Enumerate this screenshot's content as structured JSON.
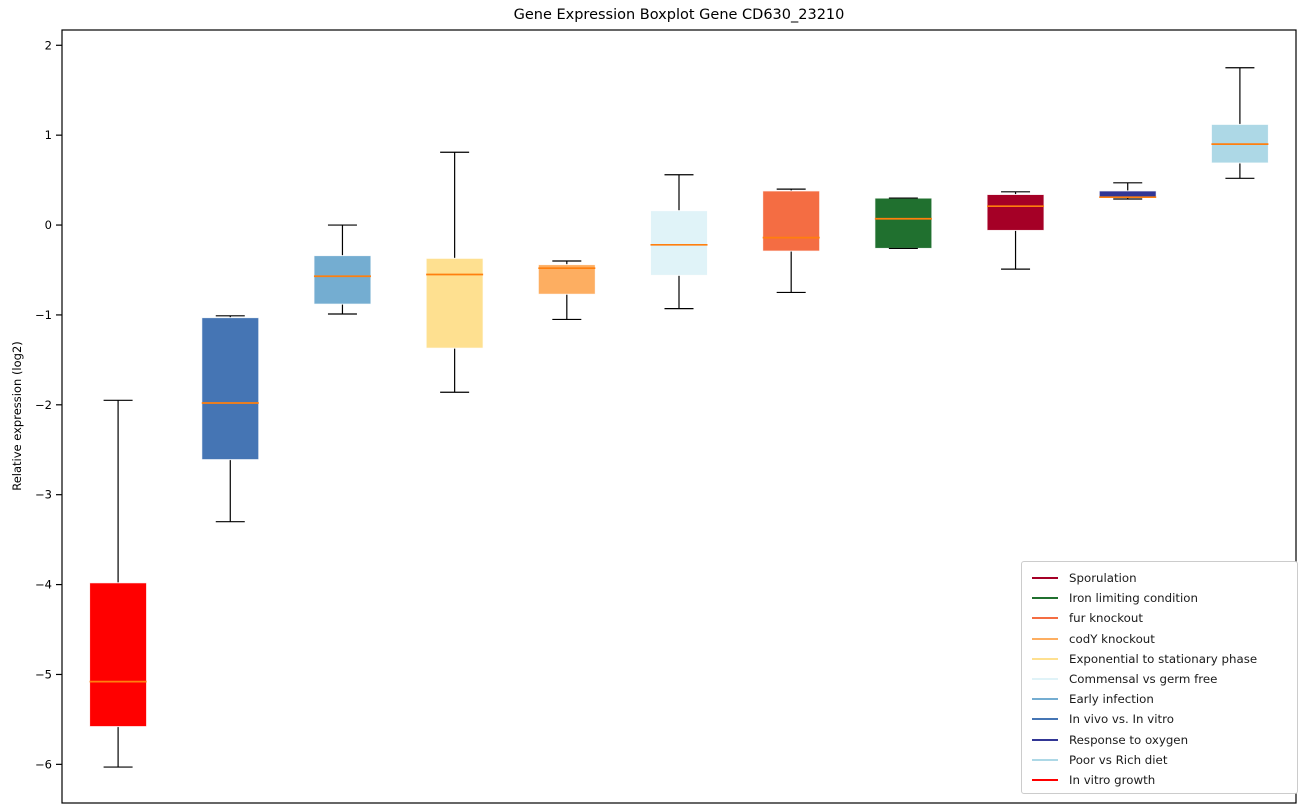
{
  "chart_data": {
    "type": "boxplot",
    "title": "Gene Expression Boxplot Gene CD630_23210",
    "xlabel": "",
    "ylabel": "Relative expression (log2)",
    "ylim": [
      -6.43,
      2.17
    ],
    "grid": false,
    "x_tick_labels": [],
    "y_ticks": [
      {
        "value": 2,
        "label": "2"
      },
      {
        "value": 1,
        "label": "1"
      },
      {
        "value": 0,
        "label": "0"
      },
      {
        "value": -1,
        "label": "−1"
      },
      {
        "value": -2,
        "label": "−2"
      },
      {
        "value": -3,
        "label": "−3"
      },
      {
        "value": -4,
        "label": "−4"
      },
      {
        "value": -5,
        "label": "−5"
      },
      {
        "value": -6,
        "label": "−6"
      }
    ],
    "median_color": "#ff7f0e",
    "whisker_color": "#000000",
    "box_edge_color": "rgba(255,255,255,0.85)",
    "groups": [
      {
        "name": "In vitro growth",
        "color": "#ff0000",
        "whisker_low": -6.03,
        "q1": -5.58,
        "median": -5.08,
        "q3": -3.98,
        "whisker_high": -1.95
      },
      {
        "name": "In vivo vs. In vitro",
        "color": "#4575b4",
        "whisker_low": -3.3,
        "q1": -2.61,
        "median": -1.98,
        "q3": -1.03,
        "whisker_high": -1.01
      },
      {
        "name": "Early infection",
        "color": "#74add1",
        "whisker_low": -0.99,
        "q1": -0.88,
        "median": -0.57,
        "q3": -0.34,
        "whisker_high": 0.0
      },
      {
        "name": "Exponential to stationary phase",
        "color": "#fee090",
        "whisker_low": -1.86,
        "q1": -1.37,
        "median": -0.55,
        "q3": -0.37,
        "whisker_high": 0.81
      },
      {
        "name": "codY knockout",
        "color": "#fdae61",
        "whisker_low": -1.05,
        "q1": -0.77,
        "median": -0.48,
        "q3": -0.44,
        "whisker_high": -0.4
      },
      {
        "name": "Commensal vs germ free",
        "color": "#e0f3f8",
        "whisker_low": -0.93,
        "q1": -0.56,
        "median": -0.22,
        "q3": 0.16,
        "whisker_high": 0.56
      },
      {
        "name": "fur knockout",
        "color": "#f46d43",
        "whisker_low": -0.75,
        "q1": -0.29,
        "median": -0.14,
        "q3": 0.38,
        "whisker_high": 0.4
      },
      {
        "name": "Iron limiting condition",
        "color": "#20702f",
        "whisker_low": -0.26,
        "q1": -0.26,
        "median": 0.07,
        "q3": 0.3,
        "whisker_high": 0.3
      },
      {
        "name": "Sporulation",
        "color": "#a50026",
        "whisker_low": -0.49,
        "q1": -0.06,
        "median": 0.21,
        "q3": 0.34,
        "whisker_high": 0.37
      },
      {
        "name": "Response to oxygen",
        "color": "#313695",
        "whisker_low": 0.29,
        "q1": 0.31,
        "median": 0.31,
        "q3": 0.38,
        "whisker_high": 0.47
      },
      {
        "name": "Poor vs Rich diet",
        "color": "#add8e6",
        "whisker_low": 0.52,
        "q1": 0.69,
        "median": 0.9,
        "q3": 1.12,
        "whisker_high": 1.75
      }
    ],
    "legend": {
      "position": "lower-right",
      "entries": [
        {
          "label": "Sporulation",
          "color": "#a50026"
        },
        {
          "label": "Iron limiting condition",
          "color": "#20702f"
        },
        {
          "label": "fur knockout",
          "color": "#f46d43"
        },
        {
          "label": "codY knockout",
          "color": "#fdae61"
        },
        {
          "label": "Exponential to stationary phase",
          "color": "#fee090"
        },
        {
          "label": "Commensal vs germ free",
          "color": "#e0f3f8"
        },
        {
          "label": "Early infection",
          "color": "#74add1"
        },
        {
          "label": "In vivo vs. In vitro",
          "color": "#4575b4"
        },
        {
          "label": "Response to oxygen",
          "color": "#313695"
        },
        {
          "label": "Poor vs Rich diet",
          "color": "#add8e6"
        },
        {
          "label": "In vitro growth",
          "color": "#ff0000"
        }
      ]
    }
  }
}
